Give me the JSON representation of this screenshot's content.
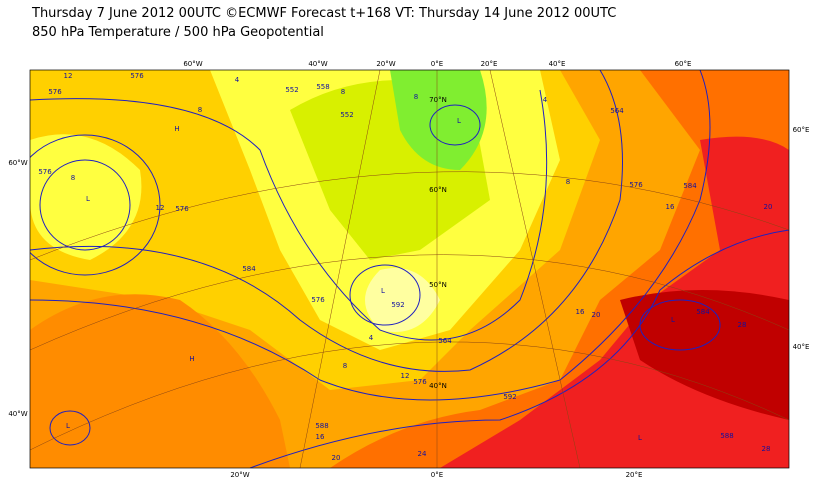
{
  "header": {
    "title": "Thursday 7 June 2012 00UTC ©ECMWF Forecast t+168 VT: Thursday 14 June 2012 00UTC",
    "subtitle": "850 hPa Temperature / 500 hPa Geopotential"
  },
  "map": {
    "lon_labels_top": [
      "60°W",
      "40°W",
      "20°W",
      "0°E",
      "20°E",
      "40°E",
      "60°E"
    ],
    "lon_labels_bottom": [
      "20°W",
      "0°E",
      "20°E"
    ],
    "lat_labels_left": [
      "60°W",
      "40°W"
    ],
    "lat_labels_right": [
      "60°E",
      "40°E"
    ],
    "lat_labels_inner": [
      "70°N",
      "60°N",
      "50°N",
      "40°N"
    ],
    "contour_labels": [
      "12",
      "576",
      "576",
      "8",
      "4",
      "552",
      "558",
      "8",
      "552",
      "8",
      "576",
      "8",
      "12",
      "576",
      "584",
      "576",
      "592",
      "4",
      "8",
      "12",
      "576",
      "564",
      "592",
      "16",
      "20",
      "584",
      "28",
      "20",
      "16",
      "576",
      "584",
      "8",
      "4",
      "564",
      "16",
      "20",
      "588",
      "24",
      "588",
      "28"
    ],
    "pressure_labels": [
      "L",
      "L",
      "H",
      "L",
      "H",
      "L",
      "L",
      "L"
    ]
  }
}
